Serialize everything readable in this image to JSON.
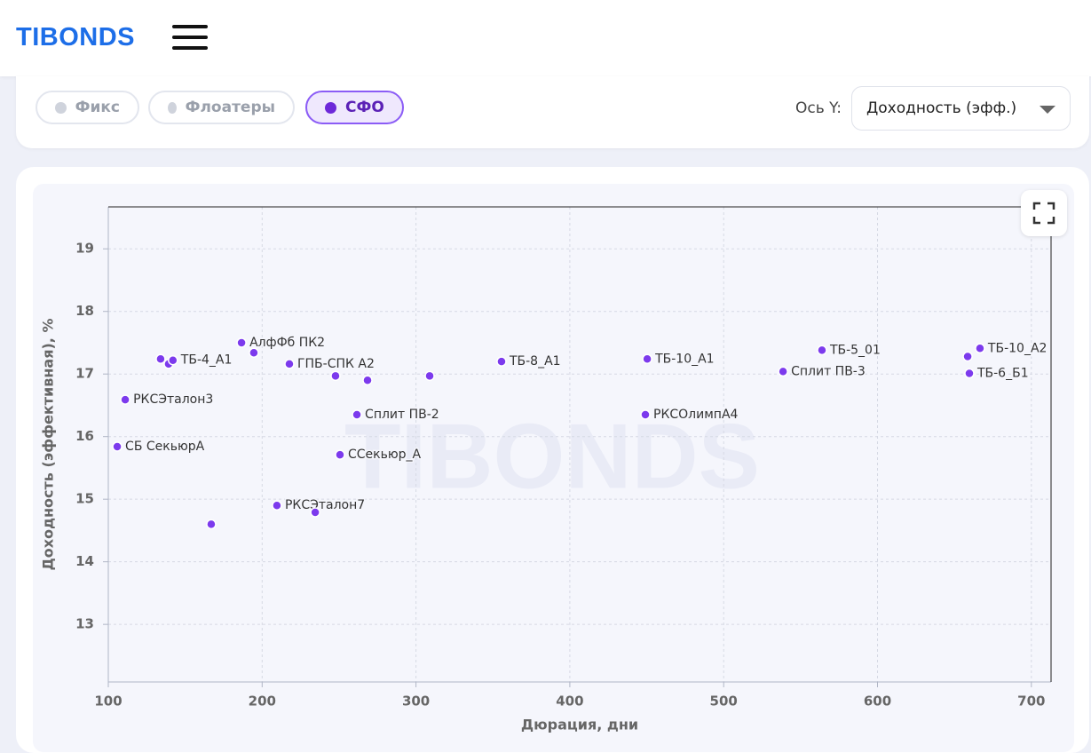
{
  "header": {
    "logo": "TIBONDS"
  },
  "filters": [
    {
      "label": "Фикс",
      "active": false
    },
    {
      "label": "Флоатеры",
      "active": false
    },
    {
      "label": "СФО",
      "active": true
    }
  ],
  "y_axis_selector": {
    "label": "Ось Y:",
    "value": "Доходность (эфф.)"
  },
  "chart_data": {
    "type": "scatter",
    "watermark": "TIBONDS",
    "x_label": "Дюрация, дни",
    "y_label": "Доходность (эффективная), %",
    "color": "#7c3aed",
    "x": [
      105.8,
      111,
      134,
      139.2,
      142,
      166.9,
      186.6,
      194.6,
      209.6,
      217.7,
      234.5,
      247.7,
      250.6,
      261.6,
      268.5,
      308.9,
      355.6,
      449.1,
      450.3,
      538.6,
      563.9,
      658.6,
      659.7,
      666.6
    ],
    "values": [
      15.84,
      16.59,
      17.24,
      17.16,
      17.22,
      14.6,
      17.5,
      17.34,
      14.9,
      17.16,
      14.79,
      16.97,
      15.71,
      16.35,
      16.9,
      16.97,
      17.2,
      16.35,
      17.24,
      17.04,
      17.38,
      17.28,
      17.01,
      17.41
    ],
    "labels": [
      "СБ СекьюрА",
      "РКСЭталон3",
      null,
      null,
      "ТБ-4_А1",
      null,
      "АлфФб ПК2",
      null,
      "РКСЭталон7",
      "ГПБ-СПК А2",
      null,
      null,
      "ССекьюр_А",
      "Сплит ПВ-2",
      null,
      null,
      "ТБ-8_А1",
      "РКСОлимпА4",
      "ТБ-10_А1",
      "Сплит ПВ-3",
      "ТБ-5_01",
      null,
      "ТБ-6_Б1",
      "ТБ-10_А2"
    ],
    "xlim": [
      100,
      712.8
    ],
    "ylim": [
      12.08,
      19.67
    ],
    "xticks": [
      100,
      200,
      300,
      400,
      500,
      600,
      700
    ],
    "yticks": [
      13,
      14,
      15,
      16,
      17,
      18,
      19
    ],
    "grid": true
  }
}
